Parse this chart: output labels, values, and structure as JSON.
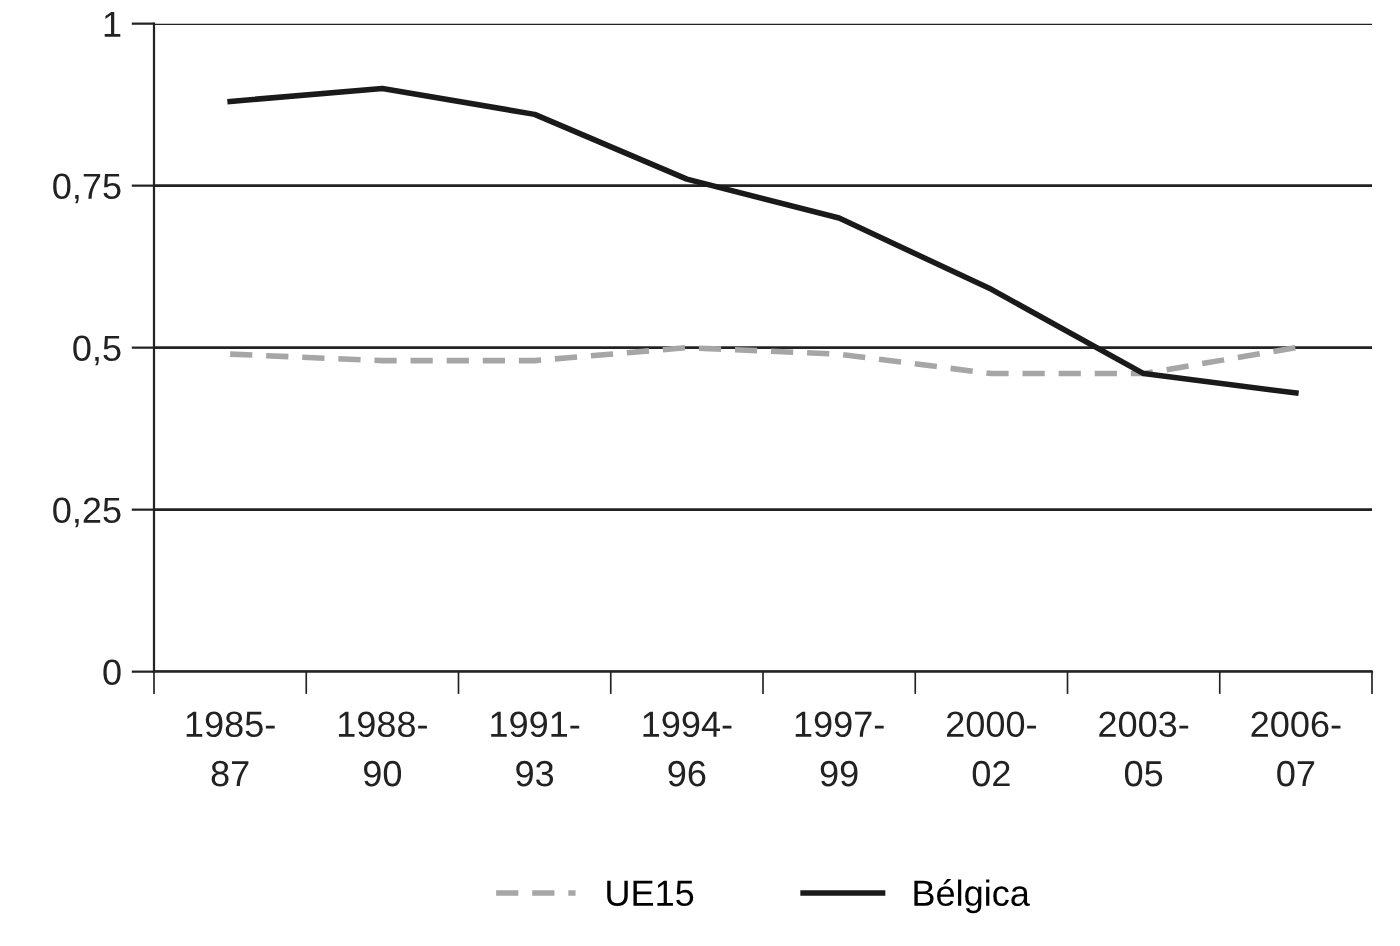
{
  "chart_data": {
    "type": "line",
    "categories": [
      "1985-\n87",
      "1988-\n90",
      "1991-\n93",
      "1994-\n96",
      "1997-\n99",
      "2000-\n02",
      "2003-\n05",
      "2006-\n07"
    ],
    "series": [
      {
        "name": "UE15",
        "color": "#a6a6a6",
        "line_style": "dashed",
        "values": [
          0.49,
          0.48,
          0.48,
          0.5,
          0.49,
          0.46,
          0.46,
          0.5
        ]
      },
      {
        "name": "Bélgica",
        "color": "#1a1a1a",
        "line_style": "solid",
        "values": [
          0.88,
          0.9,
          0.86,
          0.76,
          0.7,
          0.59,
          0.46,
          0.43
        ]
      }
    ],
    "ylim": [
      0,
      1
    ],
    "yticks": [
      0,
      {
        "value": 0.25,
        "label": "0,25"
      },
      {
        "value": 0.5,
        "label": "0,5"
      },
      {
        "value": 0.75,
        "label": "0,75"
      },
      1
    ],
    "grid": "y",
    "legend": "bottom",
    "marker": "none"
  }
}
